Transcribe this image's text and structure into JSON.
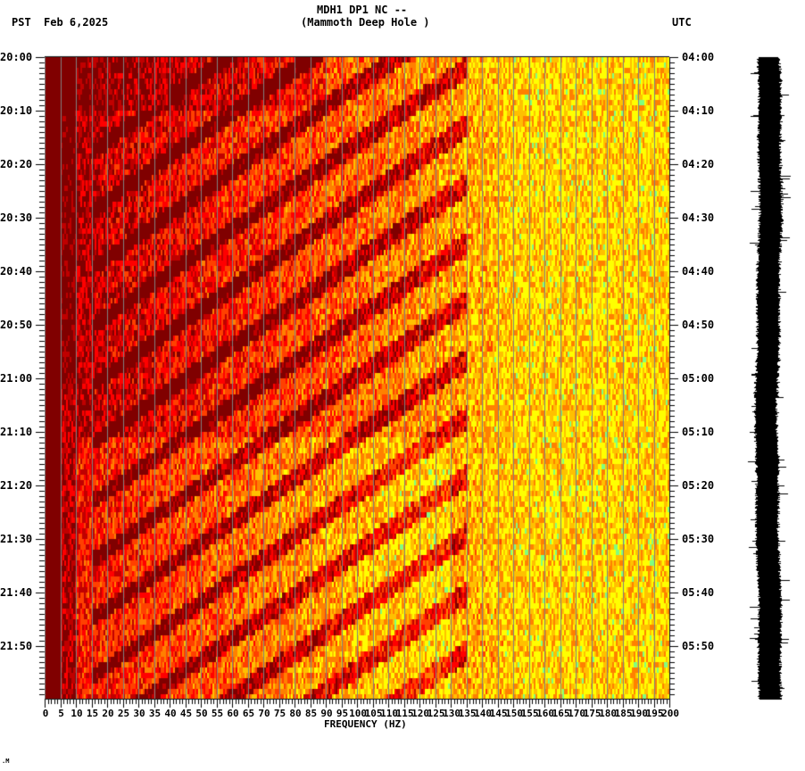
{
  "header": {
    "station": "MDH1 DP1 NC --",
    "location": "(Mammoth Deep Hole )",
    "left_tz": "PST",
    "date": "Feb 6,2025",
    "right_tz": "UTC"
  },
  "footer_mark": ".M",
  "colors": {
    "background_low": "#800000",
    "red": "#ff0000",
    "orange": "#ff8000",
    "yellow": "#ffff00",
    "cyan_green": "#80ff80",
    "grid": "#808080",
    "trace": "#000000"
  },
  "chart_data": {
    "type": "heatmap",
    "title": "MDH1 DP1 NC -- (Mammoth Deep Hole )",
    "xlabel": "FREQUENCY (HZ)",
    "ylabel_left": "PST",
    "ylabel_right": "UTC",
    "xlim": [
      0,
      200
    ],
    "x_ticks": [
      "0",
      "5",
      "10",
      "15",
      "20",
      "25",
      "30",
      "35",
      "40",
      "45",
      "50",
      "55",
      "60",
      "65",
      "70",
      "75",
      "80",
      "85",
      "90",
      "95",
      "100",
      "105",
      "110",
      "115",
      "120",
      "125",
      "130",
      "135",
      "140",
      "145",
      "150",
      "155",
      "160",
      "165",
      "170",
      "175",
      "180",
      "185",
      "190",
      "195",
      "200"
    ],
    "y_ticks_left": [
      "20:00",
      "20:10",
      "20:20",
      "20:30",
      "20:40",
      "20:50",
      "21:00",
      "21:10",
      "21:20",
      "21:30",
      "21:40",
      "21:50"
    ],
    "y_ticks_right": [
      "04:00",
      "04:10",
      "04:20",
      "04:30",
      "04:40",
      "04:50",
      "05:00",
      "05:10",
      "05:20",
      "05:30",
      "05:40",
      "05:50"
    ],
    "time_range_minutes": 120,
    "grid": "vertical lines every 5 Hz",
    "description": "Spectrogram; low power (dark red) below ~10 Hz, rising to red/orange/yellow at higher frequencies; diagonal low-power bands (harmonic tremor gliding) between ~20-130 Hz, strongest after 21:10 PST"
  }
}
